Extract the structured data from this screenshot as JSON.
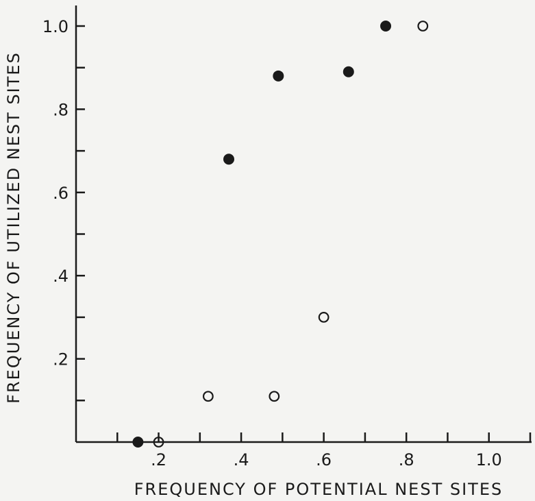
{
  "chart_data": {
    "type": "scatter",
    "xlabel": "FREQUENCY OF POTENTIAL NEST SITES",
    "ylabel": "FREQUENCY OF UTILIZED NEST SITES",
    "xlim": [
      0,
      1.1
    ],
    "ylim": [
      0,
      1.0
    ],
    "x_tick_values": [
      0.1,
      0.2,
      0.3,
      0.4,
      0.5,
      0.6,
      0.7,
      0.8,
      0.9,
      1.0,
      1.1
    ],
    "x_tick_labels": [
      {
        "value": 0.2,
        "label": ".2"
      },
      {
        "value": 0.4,
        "label": ".4"
      },
      {
        "value": 0.6,
        "label": ".6"
      },
      {
        "value": 0.8,
        "label": ".8"
      },
      {
        "value": 1.0,
        "label": "1.0"
      }
    ],
    "y_tick_values": [
      0.1,
      0.2,
      0.3,
      0.4,
      0.5,
      0.6,
      0.7,
      0.8,
      0.9,
      1.0
    ],
    "y_tick_labels": [
      {
        "value": 0.2,
        "label": ".2"
      },
      {
        "value": 0.4,
        "label": ".4"
      },
      {
        "value": 0.6,
        "label": ".6"
      },
      {
        "value": 0.8,
        "label": ".8"
      },
      {
        "value": 1.0,
        "label": "1.0"
      }
    ],
    "grid": false,
    "series": [
      {
        "marker": "filled-circle",
        "color": "#1a1a1a",
        "points": [
          {
            "x": 0.15,
            "y": 0.0
          },
          {
            "x": 0.37,
            "y": 0.68
          },
          {
            "x": 0.49,
            "y": 0.88
          },
          {
            "x": 0.66,
            "y": 0.89
          },
          {
            "x": 0.75,
            "y": 1.0
          }
        ]
      },
      {
        "marker": "open-circle",
        "color": "#1a1a1a",
        "points": [
          {
            "x": 0.2,
            "y": 0.0
          },
          {
            "x": 0.32,
            "y": 0.11
          },
          {
            "x": 0.48,
            "y": 0.11
          },
          {
            "x": 0.6,
            "y": 0.3
          },
          {
            "x": 0.84,
            "y": 1.0
          }
        ]
      }
    ]
  }
}
